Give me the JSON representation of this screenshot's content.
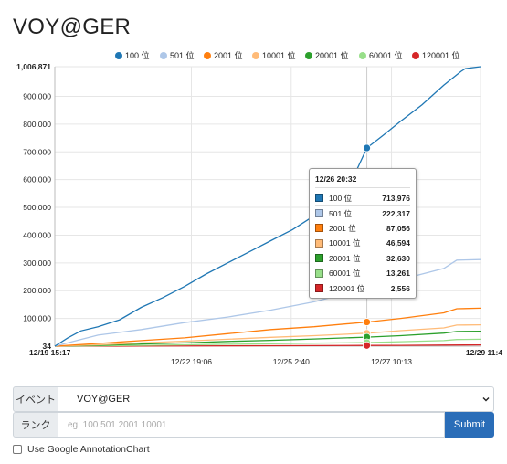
{
  "page": {
    "title": "VOY@GER"
  },
  "form": {
    "event_label": "イベント",
    "event_selected": "VOY@GER",
    "rank_label": "ランク",
    "rank_placeholder": "eg. 100 501 2001 10001",
    "submit_label": "Submit",
    "checkbox_label": "Use Google AnnotationChart"
  },
  "tooltip": {
    "date": "12/26 20:32",
    "rows": [
      {
        "label": "100 位",
        "value": "713,976",
        "color": "#1f77b4"
      },
      {
        "label": "501 位",
        "value": "222,317",
        "color": "#aec7e8"
      },
      {
        "label": "2001 位",
        "value": "87,056",
        "color": "#ff7f0e"
      },
      {
        "label": "10001 位",
        "value": "46,594",
        "color": "#ffbb78"
      },
      {
        "label": "20001 位",
        "value": "32,630",
        "color": "#2ca02c"
      },
      {
        "label": "60001 位",
        "value": "13,261",
        "color": "#98df8a"
      },
      {
        "label": "120001 位",
        "value": "2,556",
        "color": "#d62728"
      }
    ]
  },
  "chart_data": {
    "type": "line",
    "title": "",
    "xlabel": "",
    "ylabel": "",
    "ylim": [
      34,
      1006871
    ],
    "xlim": [
      "12/19 15:17",
      "12/29 11:4"
    ],
    "y_ticks": [
      "34",
      "100,000",
      "200,000",
      "300,000",
      "400,000",
      "500,000",
      "600,000",
      "700,000",
      "800,000",
      "900,000",
      "1,006,871"
    ],
    "y_tick_values": [
      34,
      100000,
      200000,
      300000,
      400000,
      500000,
      600000,
      700000,
      800000,
      900000,
      1006871
    ],
    "x_ticks": [
      "12/19 15:17",
      "12/22 19:06",
      "12/25 2:40",
      "12/27 10:13",
      "12/29 11:4"
    ],
    "x_tick_days": [
      0,
      3.16,
      5.47,
      7.79,
      9.85
    ],
    "grid": true,
    "legend_position": "top",
    "hover_x_day": 7.22,
    "x_unit": "days since 12/19 15:17",
    "series": [
      {
        "name": "100 位",
        "color": "#1f77b4",
        "points": [
          [
            0,
            34
          ],
          [
            0.3,
            30000
          ],
          [
            0.6,
            55000
          ],
          [
            1.0,
            70000
          ],
          [
            1.5,
            95000
          ],
          [
            2.0,
            140000
          ],
          [
            2.5,
            175000
          ],
          [
            3.0,
            215000
          ],
          [
            3.5,
            260000
          ],
          [
            4.0,
            300000
          ],
          [
            4.5,
            340000
          ],
          [
            5.0,
            380000
          ],
          [
            5.5,
            420000
          ],
          [
            6.0,
            470000
          ],
          [
            6.5,
            540000
          ],
          [
            7.0,
            640000
          ],
          [
            7.22,
            713976
          ],
          [
            7.6,
            760000
          ],
          [
            8.0,
            810000
          ],
          [
            8.5,
            870000
          ],
          [
            9.0,
            940000
          ],
          [
            9.4,
            990000
          ],
          [
            9.5,
            1000000
          ],
          [
            9.85,
            1006871
          ]
        ]
      },
      {
        "name": "501 位",
        "color": "#aec7e8",
        "points": [
          [
            0,
            34
          ],
          [
            0.5,
            20000
          ],
          [
            1.0,
            40000
          ],
          [
            2.0,
            60000
          ],
          [
            3.0,
            85000
          ],
          [
            4.0,
            105000
          ],
          [
            5.0,
            130000
          ],
          [
            6.0,
            160000
          ],
          [
            7.0,
            200000
          ],
          [
            7.22,
            222317
          ],
          [
            8.0,
            240000
          ],
          [
            8.5,
            260000
          ],
          [
            9.0,
            280000
          ],
          [
            9.3,
            310000
          ],
          [
            9.85,
            312000
          ]
        ]
      },
      {
        "name": "2001 位",
        "color": "#ff7f0e",
        "points": [
          [
            0,
            34
          ],
          [
            0.5,
            5000
          ],
          [
            1.0,
            10000
          ],
          [
            2.0,
            20000
          ],
          [
            3.0,
            30000
          ],
          [
            4.0,
            45000
          ],
          [
            5.0,
            60000
          ],
          [
            6.0,
            70000
          ],
          [
            7.22,
            87056
          ],
          [
            8.0,
            100000
          ],
          [
            9.0,
            120000
          ],
          [
            9.3,
            135000
          ],
          [
            9.85,
            137000
          ]
        ]
      },
      {
        "name": "10001 位",
        "color": "#ffbb78",
        "points": [
          [
            0,
            34
          ],
          [
            1.0,
            5000
          ],
          [
            2.0,
            12000
          ],
          [
            3.0,
            18000
          ],
          [
            4.0,
            25000
          ],
          [
            5.0,
            32000
          ],
          [
            6.0,
            38000
          ],
          [
            7.22,
            46594
          ],
          [
            8.0,
            56000
          ],
          [
            9.0,
            66000
          ],
          [
            9.3,
            76000
          ],
          [
            9.85,
            77000
          ]
        ]
      },
      {
        "name": "20001 位",
        "color": "#2ca02c",
        "points": [
          [
            0,
            34
          ],
          [
            1.0,
            3000
          ],
          [
            2.0,
            8000
          ],
          [
            3.0,
            12000
          ],
          [
            4.0,
            17000
          ],
          [
            5.0,
            21000
          ],
          [
            6.0,
            26000
          ],
          [
            7.22,
            32630
          ],
          [
            8.0,
            38000
          ],
          [
            9.0,
            47000
          ],
          [
            9.3,
            53000
          ],
          [
            9.85,
            54000
          ]
        ]
      },
      {
        "name": "60001 位",
        "color": "#98df8a",
        "points": [
          [
            0,
            34
          ],
          [
            1.0,
            1500
          ],
          [
            2.0,
            3000
          ],
          [
            3.0,
            5000
          ],
          [
            4.0,
            7000
          ],
          [
            5.0,
            9000
          ],
          [
            6.0,
            11000
          ],
          [
            7.22,
            13261
          ],
          [
            8.0,
            16000
          ],
          [
            9.0,
            20000
          ],
          [
            9.3,
            24000
          ],
          [
            9.85,
            25000
          ]
        ]
      },
      {
        "name": "120001 位",
        "color": "#d62728",
        "points": [
          [
            0,
            34
          ],
          [
            2.0,
            500
          ],
          [
            4.0,
            1200
          ],
          [
            6.0,
            1900
          ],
          [
            7.22,
            2556
          ],
          [
            8.0,
            3000
          ],
          [
            9.0,
            4000
          ],
          [
            9.85,
            4500
          ]
        ]
      }
    ]
  }
}
